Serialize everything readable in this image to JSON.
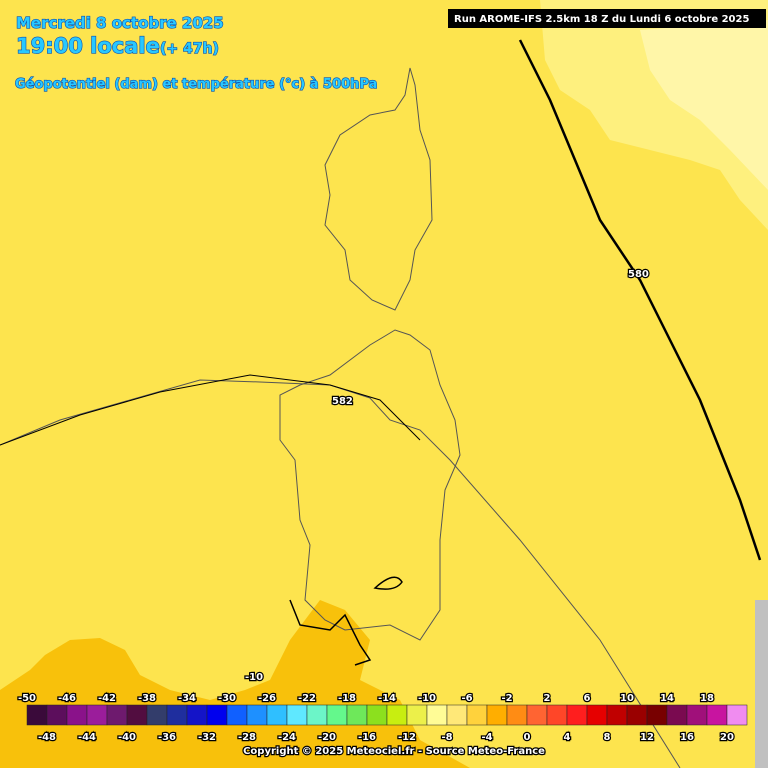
{
  "header": {
    "date": "Mercredi 8 octobre 2025",
    "time": "19:00 locale",
    "lead": "(+ 47h)",
    "parameter": "Géopotentiel (dam) et température (°c) à 500hPa",
    "run": "Run AROME-IFS 2.5km 18 Z du Lundi 6 octobre 2025"
  },
  "contour_labels": [
    580,
    582,
    -10
  ],
  "legend": {
    "values": [
      -50,
      -48,
      -46,
      -44,
      -42,
      -40,
      -38,
      -36,
      -34,
      -32,
      -30,
      -28,
      -26,
      -24,
      -22,
      -20,
      -18,
      -16,
      -14,
      -12,
      -10,
      -8,
      -6,
      -4,
      -2,
      0,
      2,
      4,
      6,
      8,
      10,
      12,
      14,
      16,
      18,
      20
    ],
    "colors": [
      "#3a0a3a",
      "#5c0e5c",
      "#8a128a",
      "#9b1d9b",
      "#6e1a6e",
      "#520d40",
      "#333d6b",
      "#1f2e9e",
      "#1414c8",
      "#0000ee",
      "#1060ff",
      "#1e90ff",
      "#2fbfff",
      "#5fe8ff",
      "#6cf5c8",
      "#64f88c",
      "#6ee85a",
      "#8ce01e",
      "#c8ee10",
      "#ecf04a",
      "#fffc96",
      "#ffe878",
      "#ffd23c",
      "#ffae00",
      "#ff8c14",
      "#ff6432",
      "#ff4628",
      "#ff1e1e",
      "#e60000",
      "#c00000",
      "#9a0000",
      "#780000",
      "#7a0a50",
      "#a0107a",
      "#c814a0",
      "#f08cf0"
    ]
  },
  "footer": {
    "copyright": "Copyright © 2025 Meteociel.fr - Source Meteo-France"
  }
}
